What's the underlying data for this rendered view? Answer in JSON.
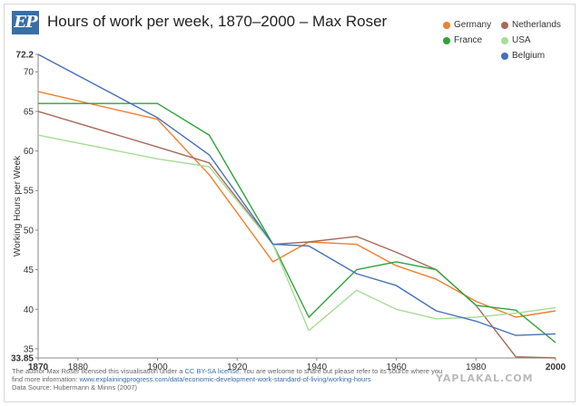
{
  "header": {
    "logo_text": "EP",
    "title": "Hours of work per week, 1870–2000 – Max Roser"
  },
  "legend": [
    {
      "name": "Germany",
      "color": "#f07f2d"
    },
    {
      "name": "Netherlands",
      "color": "#a8685a"
    },
    {
      "name": "France",
      "color": "#2ea33a"
    },
    {
      "name": "USA",
      "color": "#a8dc98"
    },
    {
      "name": "Belgium",
      "color": "#4571b8"
    }
  ],
  "footer": {
    "line1_pre": "The author Max Roser licensed this visualisation under a ",
    "line1_link": "CC BY-SA license",
    "line1_post": ". You are welcome to share but please refer to its source where you",
    "line2_pre": "find more information: ",
    "line2_link": "www.explainingprogress.com/data/economic-development-work-standard-of-living/working-hours",
    "line3": "Data Source: Hubermann & Minns (2007)"
  },
  "watermark": "YAPLAKAL.COM",
  "chart_data": {
    "type": "line",
    "title": "Hours of work per week, 1870–2000 – Max Roser",
    "xlabel": "",
    "ylabel": "Working Hours per Week",
    "xlim": [
      1870,
      2000
    ],
    "ylim": [
      33.85,
      72.2
    ],
    "x_ticks": [
      "1870",
      "1880",
      "1900",
      "1920",
      "1940",
      "1960",
      "1980",
      "2000"
    ],
    "y_ticks": [
      "72.2",
      "70",
      "65",
      "60",
      "55",
      "50",
      "45",
      "40",
      "35",
      "33.85"
    ],
    "grid": false,
    "legend_position": "top-right",
    "x": [
      1870,
      1900,
      1913,
      1929,
      1938,
      1950,
      1960,
      1970,
      1980,
      1990,
      2000
    ],
    "series": [
      {
        "name": "Germany",
        "color": "#f07f2d",
        "values": [
          67.5,
          64.0,
          57.0,
          46.0,
          48.5,
          48.2,
          45.5,
          43.8,
          41.0,
          39.0,
          39.8
        ]
      },
      {
        "name": "Netherlands",
        "color": "#a8685a",
        "values": [
          65.0,
          60.5,
          58.5,
          48.2,
          48.5,
          49.2,
          47.2,
          45.0,
          40.5,
          34.0,
          33.85
        ]
      },
      {
        "name": "France",
        "color": "#2ea33a",
        "values": [
          66.0,
          66.0,
          62.0,
          48.2,
          39.0,
          45.0,
          46.0,
          45.0,
          40.5,
          39.9,
          35.8
        ]
      },
      {
        "name": "USA",
        "color": "#a8dc98",
        "values": [
          62.0,
          59.0,
          58.0,
          48.2,
          37.3,
          42.4,
          40.0,
          38.8,
          39.0,
          39.5,
          40.2
        ]
      },
      {
        "name": "Belgium",
        "color": "#4571b8",
        "values": [
          72.2,
          64.2,
          59.5,
          48.2,
          48.0,
          44.5,
          43.0,
          39.8,
          38.5,
          36.7,
          36.9
        ]
      }
    ]
  }
}
